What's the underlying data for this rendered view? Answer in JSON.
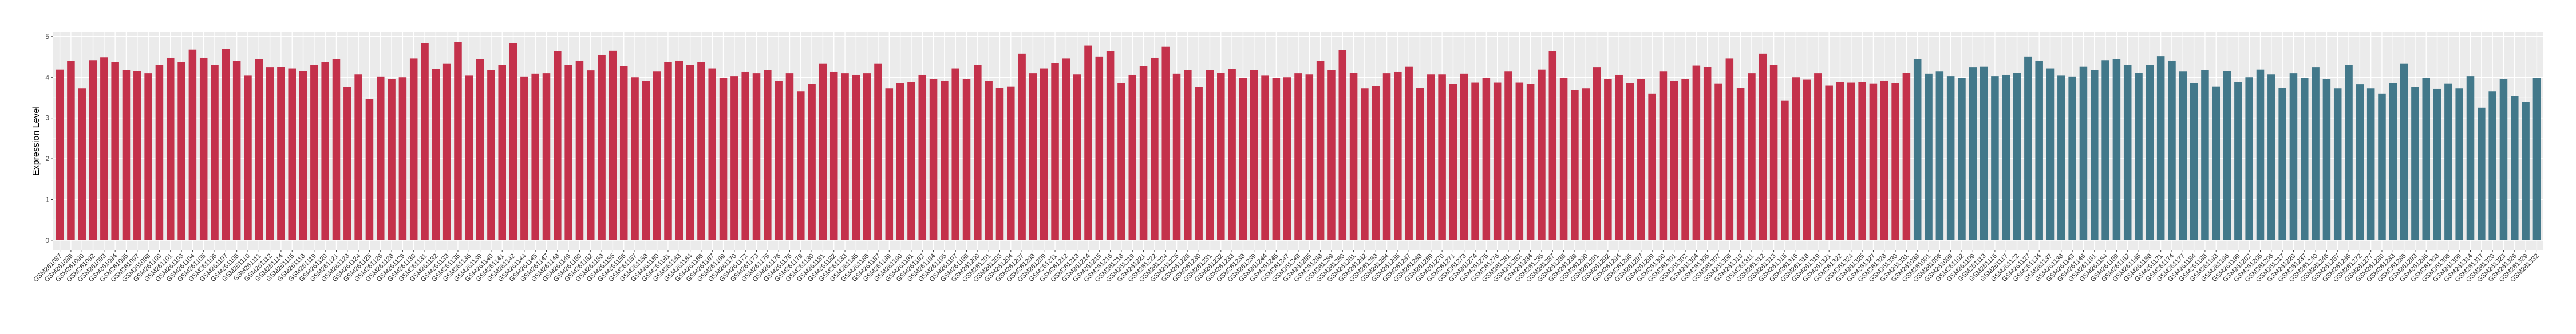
{
  "chart_data": {
    "type": "bar",
    "title": "",
    "xlabel": "",
    "ylabel": "Expression Level",
    "ylim": [
      -0.24,
      5.11
    ],
    "yticks": [
      "0",
      "1",
      "2",
      "3",
      "4",
      "5"
    ],
    "grid": true,
    "legend": "none",
    "colors": {
      "group_a": "#C4314B",
      "group_b": "#42788A",
      "panel": "#EBEBEB",
      "grid": "#FFFFFF"
    },
    "series": [
      {
        "color_key": "group_a",
        "categories": [
          "GSM261087",
          "GSM261089",
          "GSM261090",
          "GSM261092",
          "GSM261093",
          "GSM261094",
          "GSM261095",
          "GSM261097",
          "GSM261098",
          "GSM261100",
          "GSM261101",
          "GSM261103",
          "GSM261104",
          "GSM261105",
          "GSM261106",
          "GSM261107",
          "GSM261108",
          "GSM261110",
          "GSM261111",
          "GSM261112",
          "GSM261114",
          "GSM261115",
          "GSM261118",
          "GSM261119",
          "GSM261120",
          "GSM261121",
          "GSM261123",
          "GSM261124",
          "GSM261125",
          "GSM261126",
          "GSM261128",
          "GSM261129",
          "GSM261130",
          "GSM261131",
          "GSM261132",
          "GSM261133",
          "GSM261135",
          "GSM261136",
          "GSM261139",
          "GSM261140",
          "GSM261141",
          "GSM261142",
          "GSM261144",
          "GSM261145",
          "GSM261147",
          "GSM261148",
          "GSM261149",
          "GSM261150",
          "GSM261152",
          "GSM261153",
          "GSM261155",
          "GSM261156",
          "GSM261157",
          "GSM261158",
          "GSM261160",
          "GSM261161",
          "GSM261163",
          "GSM261164",
          "GSM261166",
          "GSM261167",
          "GSM261169",
          "GSM261170",
          "GSM261172",
          "GSM261173",
          "GSM261175",
          "GSM261176",
          "GSM261178",
          "GSM261179",
          "GSM261180",
          "GSM261181",
          "GSM261182",
          "GSM261183",
          "GSM261185",
          "GSM261186",
          "GSM261187",
          "GSM261189",
          "GSM261190",
          "GSM261191",
          "GSM261192",
          "GSM261194",
          "GSM261195",
          "GSM261197",
          "GSM261198",
          "GSM261200",
          "GSM261201",
          "GSM261203",
          "GSM261204",
          "GSM261207",
          "GSM261208",
          "GSM261209",
          "GSM261211",
          "GSM261212",
          "GSM261213",
          "GSM261214",
          "GSM261215",
          "GSM261216",
          "GSM261218",
          "GSM261219",
          "GSM261221",
          "GSM261222",
          "GSM261224",
          "GSM261225",
          "GSM261228",
          "GSM261230",
          "GSM261231",
          "GSM261232",
          "GSM261233",
          "GSM261238",
          "GSM261239",
          "GSM261244",
          "GSM261245",
          "GSM261247",
          "GSM261248",
          "GSM261255",
          "GSM261258",
          "GSM261259",
          "GSM261260",
          "GSM261261",
          "GSM261262",
          "GSM261263",
          "GSM261264",
          "GSM261265",
          "GSM261267",
          "GSM261268",
          "GSM261269",
          "GSM261270",
          "GSM261271",
          "GSM261273",
          "GSM261274",
          "GSM261275",
          "GSM261276",
          "GSM261281",
          "GSM261282",
          "GSM261284",
          "GSM261285",
          "GSM261287",
          "GSM261288",
          "GSM261289",
          "GSM261290",
          "GSM261291",
          "GSM261292",
          "GSM261294",
          "GSM261295",
          "GSM261297",
          "GSM261299",
          "GSM261300",
          "GSM261301",
          "GSM261302",
          "GSM261304",
          "GSM261305",
          "GSM261307",
          "GSM261308",
          "GSM261310",
          "GSM261311",
          "GSM261312",
          "GSM261313",
          "GSM261315",
          "GSM261316",
          "GSM261318",
          "GSM261319",
          "GSM261321",
          "GSM261322",
          "GSM261324",
          "GSM261325",
          "GSM261327",
          "GSM261328",
          "GSM261330",
          "GSM261331"
        ],
        "values": [
          4.19,
          4.4,
          3.72,
          4.42,
          4.49,
          4.38,
          4.18,
          4.15,
          4.1,
          4.3,
          4.48,
          4.38,
          4.68,
          4.48,
          4.3,
          4.7,
          4.4,
          4.04,
          4.45,
          4.24,
          4.25,
          4.22,
          4.15,
          4.31,
          4.37,
          4.45,
          3.76,
          4.07,
          3.47,
          4.02,
          3.95,
          4.0,
          4.46,
          4.84,
          4.21,
          4.33,
          4.86,
          4.04,
          4.45,
          4.18,
          4.31,
          4.84,
          4.02,
          4.09,
          4.1,
          4.64,
          4.3,
          4.41,
          4.17,
          4.55,
          4.65,
          4.28,
          4.0,
          3.91,
          4.14,
          4.38,
          4.41,
          4.3,
          4.38,
          4.22,
          3.99,
          4.03,
          4.13,
          4.1,
          4.18,
          3.91,
          4.1,
          3.65,
          3.83,
          4.33,
          4.13,
          4.1,
          4.06,
          4.1,
          4.33,
          3.72,
          3.85,
          3.88,
          4.06,
          3.95,
          3.92,
          4.22,
          3.95,
          4.31,
          3.91,
          3.73,
          3.77,
          4.58,
          4.1,
          4.22,
          4.34,
          4.46,
          4.07,
          4.78,
          4.51,
          4.64,
          3.85,
          4.06,
          4.28,
          4.48,
          4.75,
          4.09,
          4.18,
          3.76,
          4.18,
          4.11,
          4.21,
          3.99,
          4.18,
          4.04,
          3.98,
          4.0,
          4.1,
          4.07,
          4.4,
          4.18,
          4.67,
          4.11,
          3.72,
          3.79,
          4.1,
          4.13,
          4.26,
          3.73,
          4.07,
          4.07,
          3.83,
          4.09,
          3.87,
          3.99,
          3.87,
          4.14,
          3.87,
          3.83,
          4.19,
          4.64,
          3.99,
          3.69,
          3.72,
          4.24,
          3.95,
          4.06,
          3.85,
          3.95,
          3.6,
          4.14,
          3.91,
          3.96,
          4.29,
          4.25,
          3.84,
          4.46,
          3.73,
          4.1,
          4.58,
          4.31,
          3.42,
          4.0,
          3.94,
          4.1,
          3.8,
          3.89,
          3.87,
          3.89,
          3.84,
          3.92,
          3.85,
          4.11
        ]
      },
      {
        "color_key": "group_b",
        "categories": [
          "GSM261088",
          "GSM261091",
          "GSM261096",
          "GSM261099",
          "GSM261102",
          "GSM261109",
          "GSM261113",
          "GSM261116",
          "GSM261117",
          "GSM261122",
          "GSM261127",
          "GSM261134",
          "GSM261137",
          "GSM261138",
          "GSM261143",
          "GSM261146",
          "GSM261151",
          "GSM261154",
          "GSM261159",
          "GSM261162",
          "GSM261165",
          "GSM261168",
          "GSM261171",
          "GSM261174",
          "GSM261177",
          "GSM261184",
          "GSM261188",
          "GSM261193",
          "GSM261196",
          "GSM261199",
          "GSM261202",
          "GSM261205",
          "GSM261206",
          "GSM261217",
          "GSM261220",
          "GSM261237",
          "GSM261240",
          "GSM261246",
          "GSM261257",
          "GSM261266",
          "GSM261272",
          "GSM261277",
          "GSM261280",
          "GSM261283",
          "GSM261286",
          "GSM261293",
          "GSM261296",
          "GSM261303",
          "GSM261306",
          "GSM261309",
          "GSM261314",
          "GSM261317",
          "GSM261320",
          "GSM261323",
          "GSM261326",
          "GSM261329",
          "GSM261332"
        ],
        "values": [
          4.45,
          4.09,
          4.14,
          4.03,
          3.98,
          4.24,
          4.26,
          4.03,
          4.06,
          4.11,
          4.51,
          4.41,
          4.22,
          4.04,
          4.02,
          4.26,
          4.18,
          4.42,
          4.45,
          4.31,
          4.11,
          4.3,
          4.52,
          4.41,
          4.14,
          3.85,
          4.18,
          3.77,
          4.15,
          3.88,
          4.0,
          4.19,
          4.07,
          3.73,
          4.1,
          3.98,
          4.24,
          3.95,
          3.72,
          4.31,
          3.82,
          3.72,
          3.6,
          3.85,
          4.33,
          3.76,
          3.99,
          3.71,
          3.84,
          3.72,
          4.03,
          3.25,
          3.65,
          3.96,
          3.53,
          3.4,
          3.98
        ]
      }
    ]
  }
}
